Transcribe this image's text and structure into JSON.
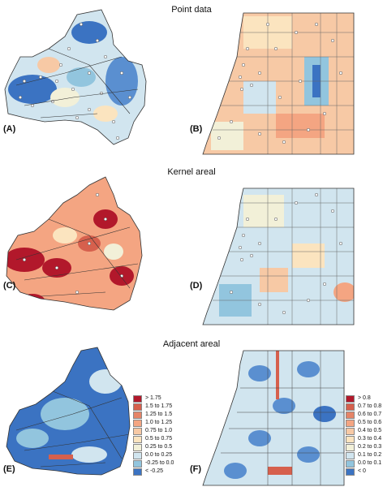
{
  "titles": {
    "point": "Point data",
    "kernel": "Kernel areal",
    "adjacent": "Adjacent areal"
  },
  "panels": [
    "(A)",
    "(B)",
    "(C)",
    "(D)",
    "(E)",
    "(F)"
  ],
  "legend_left": {
    "items": [
      {
        "label": "> 1.75",
        "color": "#b2182b"
      },
      {
        "label": "1.5 to 1.75",
        "color": "#d6604d"
      },
      {
        "label": "1.25 to 1.5",
        "color": "#e58467"
      },
      {
        "label": "1.0 to 1.25",
        "color": "#f4a582"
      },
      {
        "label": "0.75 to 1.0",
        "color": "#f7c9a5"
      },
      {
        "label": "0.5 to 0.75",
        "color": "#fbe4bf"
      },
      {
        "label": "0.25 to 0.5",
        "color": "#f2f0d8"
      },
      {
        "label": "0.0 to 0.25",
        "color": "#d1e5ef"
      },
      {
        "label": "-0.25 to 0.0",
        "color": "#92c5de"
      },
      {
        "label": "< -0.25",
        "color": "#3b73c2"
      }
    ]
  },
  "legend_right": {
    "items": [
      {
        "label": "> 0.8",
        "color": "#b2182b"
      },
      {
        "label": "0.7 to 0.8",
        "color": "#d6604d"
      },
      {
        "label": "0.6 to 0.7",
        "color": "#e58467"
      },
      {
        "label": "0.5 to 0.6",
        "color": "#f4a582"
      },
      {
        "label": "0.4 to 0.5",
        "color": "#f7c9a5"
      },
      {
        "label": "0.3 to 0.4",
        "color": "#fbe4bf"
      },
      {
        "label": "0.2 to 0.3",
        "color": "#f2f0d8"
      },
      {
        "label": "0.1 to 0.2",
        "color": "#d1e5ef"
      },
      {
        "label": "0.0 to 0.1",
        "color": "#92c5de"
      },
      {
        "label": "< 0",
        "color": "#3b73c2"
      }
    ]
  }
}
